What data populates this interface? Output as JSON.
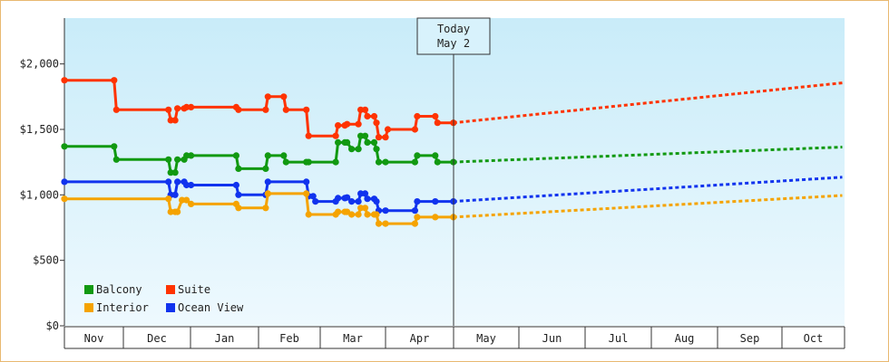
{
  "chart_data": {
    "type": "line",
    "title": "",
    "xlabel": "",
    "ylabel": "",
    "ylim": [
      0,
      2350
    ],
    "yticks": [
      0,
      500,
      1000,
      1500,
      2000
    ],
    "ytick_labels": [
      "$0",
      "$500",
      "$1,000",
      "$1,500",
      "$2,000"
    ],
    "x_range_days": [
      0,
      345
    ],
    "month_labels": [
      "Nov",
      "Dec",
      "Jan",
      "Feb",
      "Mar",
      "Apr",
      "May",
      "Jun",
      "Jul",
      "Aug",
      "Sep",
      "Oct"
    ],
    "today": {
      "line1": "Today",
      "line2": "May 2"
    },
    "grid": false,
    "legend_position": "bottom-left",
    "series": [
      {
        "name": "Suite",
        "color": "#ff3300",
        "points": [
          [
            0,
            1875
          ],
          [
            22,
            1875
          ],
          [
            23,
            1650
          ],
          [
            46,
            1650
          ],
          [
            47,
            1570
          ],
          [
            49,
            1570
          ],
          [
            50,
            1660
          ],
          [
            53,
            1660
          ],
          [
            54,
            1670
          ],
          [
            56,
            1670
          ],
          [
            76,
            1670
          ],
          [
            77,
            1650
          ],
          [
            89,
            1650
          ],
          [
            90,
            1750
          ],
          [
            97,
            1750
          ],
          [
            98,
            1650
          ],
          [
            107,
            1650
          ],
          [
            108,
            1450
          ],
          [
            120,
            1450
          ],
          [
            121,
            1530
          ],
          [
            124,
            1530
          ],
          [
            125,
            1540
          ],
          [
            130,
            1540
          ],
          [
            131,
            1650
          ],
          [
            133,
            1650
          ],
          [
            134,
            1600
          ],
          [
            137,
            1600
          ],
          [
            138,
            1550
          ],
          [
            139,
            1440
          ],
          [
            142,
            1440
          ],
          [
            143,
            1500
          ],
          [
            155,
            1500
          ],
          [
            156,
            1600
          ],
          [
            164,
            1600
          ],
          [
            165,
            1550
          ],
          [
            172,
            1550
          ]
        ],
        "forecast": [
          [
            172,
            1550
          ],
          [
            344,
            1855
          ]
        ]
      },
      {
        "name": "Balcony",
        "color": "#119911",
        "points": [
          [
            0,
            1370
          ],
          [
            22,
            1370
          ],
          [
            23,
            1270
          ],
          [
            46,
            1270
          ],
          [
            47,
            1170
          ],
          [
            49,
            1170
          ],
          [
            50,
            1270
          ],
          [
            53,
            1270
          ],
          [
            54,
            1300
          ],
          [
            56,
            1300
          ],
          [
            76,
            1300
          ],
          [
            77,
            1200
          ],
          [
            89,
            1200
          ],
          [
            90,
            1300
          ],
          [
            97,
            1300
          ],
          [
            98,
            1250
          ],
          [
            107,
            1250
          ],
          [
            108,
            1250
          ],
          [
            120,
            1250
          ],
          [
            121,
            1400
          ],
          [
            124,
            1400
          ],
          [
            125,
            1400
          ],
          [
            127,
            1350
          ],
          [
            130,
            1350
          ],
          [
            131,
            1450
          ],
          [
            133,
            1450
          ],
          [
            134,
            1400
          ],
          [
            137,
            1400
          ],
          [
            138,
            1350
          ],
          [
            139,
            1250
          ],
          [
            142,
            1250
          ],
          [
            155,
            1250
          ],
          [
            156,
            1300
          ],
          [
            164,
            1300
          ],
          [
            165,
            1250
          ],
          [
            172,
            1250
          ]
        ],
        "forecast": [
          [
            172,
            1250
          ],
          [
            344,
            1365
          ]
        ]
      },
      {
        "name": "Ocean View",
        "color": "#1133ee",
        "points": [
          [
            0,
            1100
          ],
          [
            46,
            1100
          ],
          [
            47,
            1000
          ],
          [
            49,
            1000
          ],
          [
            50,
            1100
          ],
          [
            53,
            1100
          ],
          [
            54,
            1075
          ],
          [
            56,
            1075
          ],
          [
            76,
            1075
          ],
          [
            77,
            1000
          ],
          [
            89,
            1000
          ],
          [
            90,
            1100
          ],
          [
            107,
            1100
          ],
          [
            108,
            990
          ],
          [
            110,
            990
          ],
          [
            111,
            950
          ],
          [
            120,
            950
          ],
          [
            121,
            975
          ],
          [
            124,
            975
          ],
          [
            125,
            980
          ],
          [
            127,
            950
          ],
          [
            130,
            950
          ],
          [
            131,
            1010
          ],
          [
            133,
            1010
          ],
          [
            134,
            970
          ],
          [
            137,
            970
          ],
          [
            138,
            950
          ],
          [
            139,
            880
          ],
          [
            142,
            880
          ],
          [
            155,
            880
          ],
          [
            156,
            950
          ],
          [
            164,
            950
          ],
          [
            172,
            950
          ]
        ],
        "forecast": [
          [
            172,
            950
          ],
          [
            344,
            1135
          ]
        ]
      },
      {
        "name": "Interior",
        "color": "#f5a300",
        "points": [
          [
            0,
            970
          ],
          [
            46,
            970
          ],
          [
            47,
            870
          ],
          [
            49,
            870
          ],
          [
            50,
            870
          ],
          [
            52,
            960
          ],
          [
            54,
            960
          ],
          [
            56,
            930
          ],
          [
            76,
            930
          ],
          [
            77,
            900
          ],
          [
            89,
            900
          ],
          [
            90,
            1010
          ],
          [
            107,
            1010
          ],
          [
            108,
            850
          ],
          [
            120,
            850
          ],
          [
            121,
            870
          ],
          [
            124,
            870
          ],
          [
            125,
            870
          ],
          [
            127,
            850
          ],
          [
            130,
            850
          ],
          [
            131,
            900
          ],
          [
            133,
            900
          ],
          [
            134,
            850
          ],
          [
            137,
            850
          ],
          [
            138,
            850
          ],
          [
            139,
            780
          ],
          [
            142,
            780
          ],
          [
            155,
            780
          ],
          [
            156,
            830
          ],
          [
            164,
            830
          ],
          [
            172,
            830
          ]
        ],
        "forecast": [
          [
            172,
            830
          ],
          [
            344,
            995
          ]
        ]
      }
    ]
  },
  "legend": {
    "rows": [
      [
        {
          "label": "Balcony",
          "color": "#119911"
        },
        {
          "label": "Suite",
          "color": "#ff3300"
        }
      ],
      [
        {
          "label": "Interior",
          "color": "#f5a300"
        },
        {
          "label": "Ocean View",
          "color": "#1133ee"
        }
      ]
    ]
  }
}
